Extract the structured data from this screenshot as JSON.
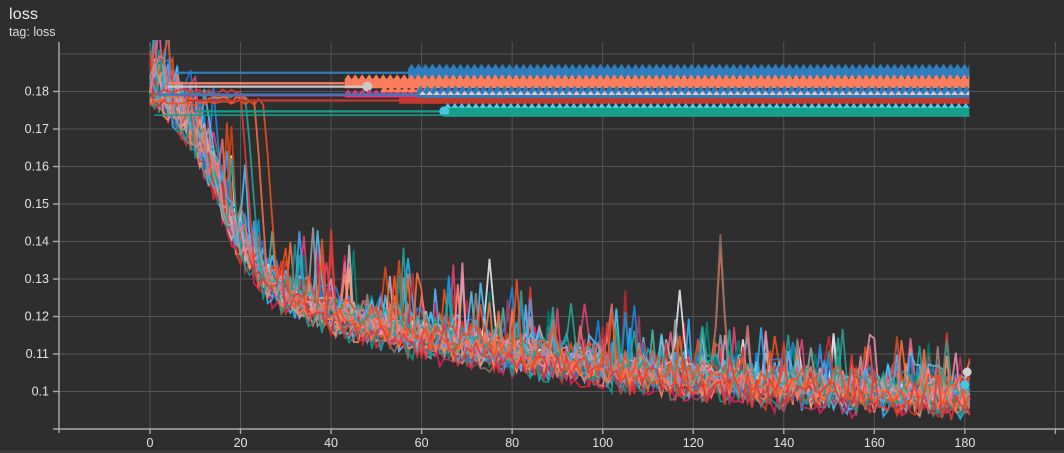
{
  "header": {
    "title": "loss",
    "subtitle": "tag: loss"
  },
  "theme": {
    "background": "#2e2e2e",
    "grid_color": "#555555",
    "axis_color": "#ababab",
    "tick_text_color": "#e3e3e3",
    "title_color": "#efefef"
  },
  "chart_data": {
    "type": "line",
    "title": "loss",
    "subtitle": "tag: loss",
    "xlabel": "",
    "ylabel": "",
    "grid": true,
    "legend": "none",
    "xlim": [
      -20.1,
      201.9
    ],
    "ylim": [
      0.09,
      0.1932
    ],
    "x_ticks": [
      {
        "v": 0,
        "label": "0"
      },
      {
        "v": 20,
        "label": "20"
      },
      {
        "v": 40,
        "label": "40"
      },
      {
        "v": 60,
        "label": "60"
      },
      {
        "v": 80,
        "label": "80"
      },
      {
        "v": 100,
        "label": "100"
      },
      {
        "v": 120,
        "label": "120"
      },
      {
        "v": 140,
        "label": "140"
      },
      {
        "v": 160,
        "label": "160"
      },
      {
        "v": 180,
        "label": "180"
      }
    ],
    "x_grid_extra": [
      200
    ],
    "y_ticks": [
      {
        "v": 0.18,
        "label": "0.18"
      },
      {
        "v": 0.17,
        "label": "0.17"
      },
      {
        "v": 0.16,
        "label": "0.16"
      },
      {
        "v": 0.15,
        "label": "0.15"
      },
      {
        "v": 0.14,
        "label": "0.14"
      },
      {
        "v": 0.13,
        "label": "0.13"
      },
      {
        "v": 0.12,
        "label": "0.12"
      },
      {
        "v": 0.11,
        "label": "0.11"
      },
      {
        "v": 0.1,
        "label": "0.1"
      }
    ],
    "y_grid_extra": [
      0.19
    ],
    "end_step": 181,
    "plateau_runs": [
      {
        "name": "plateau-blue-top",
        "color": "#2e7dbe",
        "value": 0.185,
        "line_start": 6,
        "band_start": 57,
        "band_end": 181,
        "band_h": 9,
        "teeth_h": 5,
        "teeth_color": "#2e7dbe"
      },
      {
        "name": "plateau-coral",
        "color": "#fb7d5c",
        "value": 0.1822,
        "line_start": 4,
        "band_start": 43,
        "band_end": 181,
        "band_h": 9,
        "teeth_h": 5,
        "teeth_color": "#fb7d5c"
      },
      {
        "name": "plateau-gray",
        "color": "#c9c9c9",
        "value": 0.1813,
        "line_start": 4,
        "line_end": 48,
        "end_marker": {
          "color": "#c9c9c9",
          "r": 5
        }
      },
      {
        "name": "plateau-magenta",
        "color": "#e8337e",
        "value": 0.179,
        "line_start": 6,
        "band_start": 43,
        "band_end": 59,
        "band_h": 4,
        "teeth_h": 4,
        "teeth_color": "#e8337e"
      },
      {
        "name": "plateau-coral-mini",
        "color": "#fb7d5c",
        "value": 0.1801,
        "band_start": 51,
        "band_end": 63,
        "band_h": 2,
        "teeth_h": 4,
        "teeth_color": "#fb7d5c",
        "no_line": true
      },
      {
        "name": "plateau-blue-mid",
        "color": "#2e7dbe",
        "value": 0.1792,
        "line_start": 2,
        "band_start": 59,
        "band_end": 181,
        "band_h": 9,
        "teeth_h": 5,
        "teeth_color": "#2e7dbe",
        "overlay_teeth_color": "#efc4bc",
        "overlay_teeth_h": 4
      },
      {
        "name": "plateau-red",
        "color": "#c0392b",
        "value": 0.1776,
        "line_start": 8,
        "band_start": 55,
        "band_end": 181,
        "band_h": 6,
        "teeth_h": 0
      },
      {
        "name": "plateau-teal",
        "color": "#16a08c",
        "value": 0.1747,
        "line_start": 10,
        "band_start": 65,
        "band_end": 181,
        "band_h": 10,
        "teeth_h": 5,
        "teeth_color": "#4ecde6",
        "start_marker": {
          "color": "#45c5ea",
          "r": 5
        }
      },
      {
        "name": "plateau-teal-thin",
        "color": "#16a08c",
        "value": 0.1737,
        "line_start": 1,
        "line_end": 181,
        "thin": true
      }
    ],
    "end_markers": [
      {
        "color": "#cfd0d2",
        "step": 180.5,
        "value": 0.1052,
        "r": 4.5
      },
      {
        "color": "#45c5ea",
        "step": 180.0,
        "value": 0.1018,
        "r": 4.5
      }
    ],
    "noisy_runs": {
      "count": 36,
      "seed": 11,
      "colors": [
        "#ff7043",
        "#f4511e",
        "#e53935",
        "#c62828",
        "#ec407a",
        "#e91e63",
        "#f06292",
        "#26a69a",
        "#00897b",
        "#4db6ac",
        "#29b6f6",
        "#039be5",
        "#1e88e5",
        "#64b5f6",
        "#90a4ae",
        "#eceff1",
        "#bdbdbd",
        "#8d6e63",
        "#ff8a65",
        "#d84315",
        "#ef5350",
        "#ad3a5e",
        "#2aa198",
        "#00796b",
        "#4fc3f7",
        "#1976d2",
        "#b0bec5",
        "#a1887f",
        "#ff8f65",
        "#e64a19",
        "#d32f2f",
        "#f48fb1",
        "#19978a",
        "#42a5f5",
        "#9e9e9e",
        "#e57373"
      ],
      "trend": [
        [
          0,
          0.1835
        ],
        [
          2,
          0.1812
        ],
        [
          4,
          0.1788
        ],
        [
          6,
          0.1762
        ],
        [
          8,
          0.1728
        ],
        [
          10,
          0.1688
        ],
        [
          13,
          0.1615
        ],
        [
          16,
          0.1522
        ],
        [
          19,
          0.1432
        ],
        [
          22,
          0.1362
        ],
        [
          25,
          0.1312
        ],
        [
          28,
          0.128
        ],
        [
          32,
          0.1252
        ],
        [
          36,
          0.123
        ],
        [
          40,
          0.1213
        ],
        [
          46,
          0.119
        ],
        [
          52,
          0.117
        ],
        [
          58,
          0.1153
        ],
        [
          64,
          0.1138
        ],
        [
          72,
          0.112
        ],
        [
          80,
          0.1104
        ],
        [
          90,
          0.1085
        ],
        [
          100,
          0.1067
        ],
        [
          110,
          0.1051
        ],
        [
          120,
          0.1037
        ],
        [
          130,
          0.1025
        ],
        [
          140,
          0.1015
        ],
        [
          150,
          0.1007
        ],
        [
          160,
          0.1
        ],
        [
          170,
          0.0995
        ],
        [
          181,
          0.0991
        ]
      ],
      "noise": {
        "base": 0.0024,
        "base_spread": 0.0026,
        "spike": 0.021,
        "spike_prob": 0.1,
        "offset_spread": 0.003
      },
      "forced_spikes": [
        {
          "run": 0,
          "step": 126,
          "delta": 0.036
        },
        {
          "run": 17,
          "step": 126,
          "delta": 0.039
        },
        {
          "run": 15,
          "step": 117,
          "delta": 0.023
        },
        {
          "run": 15,
          "step": 75,
          "delta": 0.024
        },
        {
          "run": 7,
          "step": 122,
          "delta": 0.014
        },
        {
          "run": 10,
          "step": 57,
          "delta": 0.02
        },
        {
          "run": 4,
          "step": 96,
          "delta": 0.016
        }
      ],
      "late_drop_runs": [
        {
          "color": "#26a69a",
          "plateau": 0.179,
          "drop_step": 22
        },
        {
          "color": "#ff7043",
          "plateau": 0.1778,
          "drop_step": 24
        },
        {
          "color": "#e53935",
          "plateau": 0.18,
          "drop_step": 21
        },
        {
          "color": "#f4511e",
          "plateau": 0.1772,
          "drop_step": 26
        }
      ]
    }
  }
}
